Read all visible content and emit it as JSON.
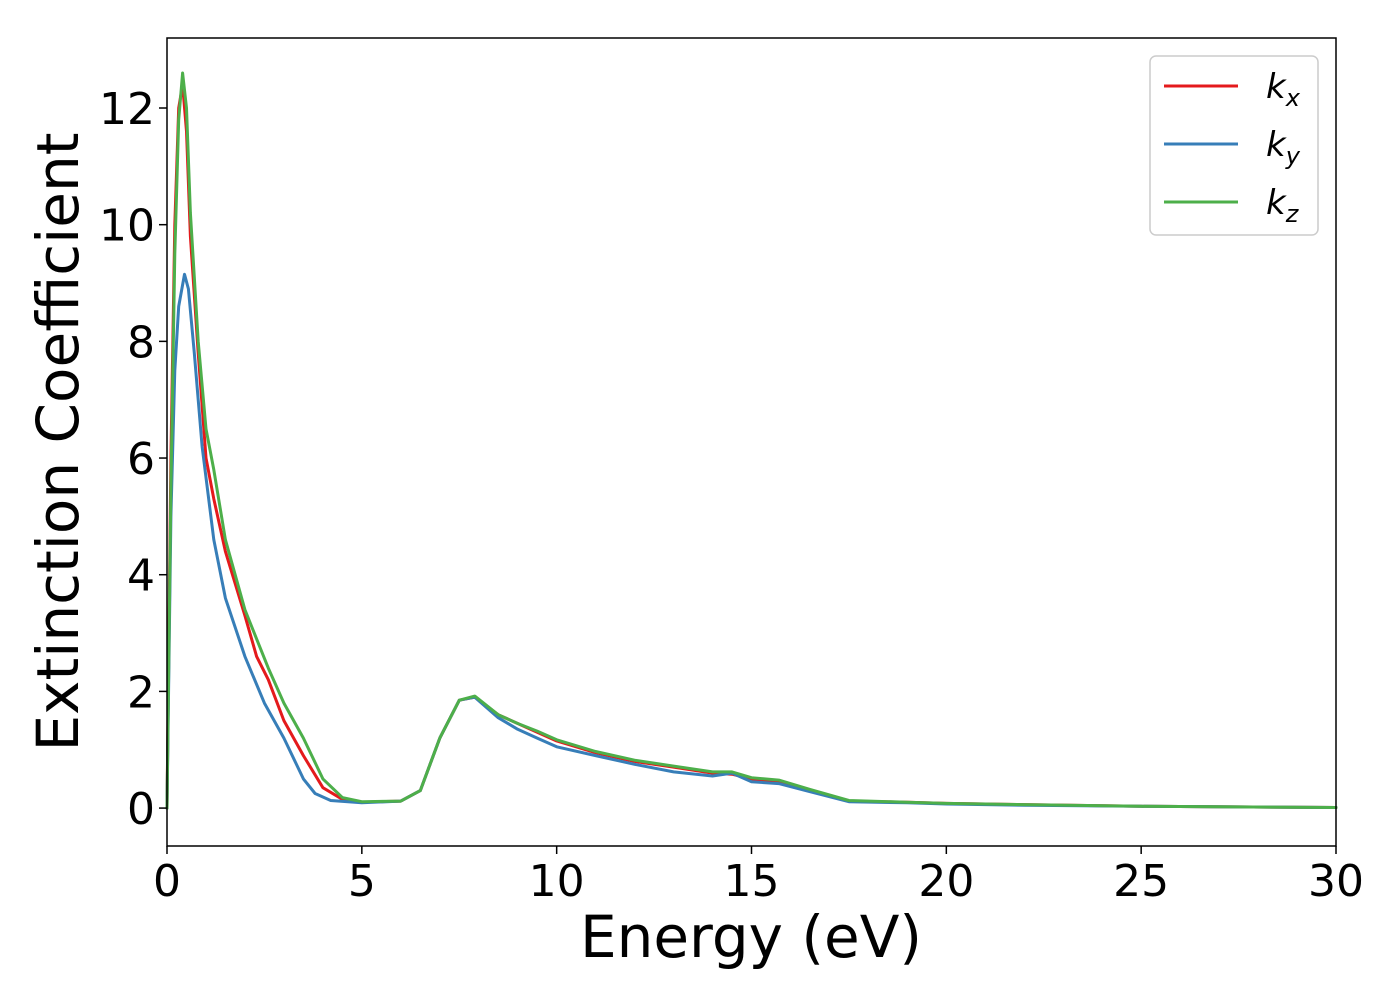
{
  "chart_data": {
    "type": "line",
    "xlabel": "Energy (eV)",
    "ylabel": "Extinction Coefficient",
    "xlim": [
      0,
      30
    ],
    "ylim": [
      -0.65,
      13.2
    ],
    "xticks": [
      0,
      5,
      10,
      15,
      20,
      25,
      30
    ],
    "yticks": [
      0,
      2,
      4,
      6,
      8,
      10,
      12
    ],
    "grid": false,
    "legend_position": "top-right",
    "series": [
      {
        "name": "k",
        "subscript": "x",
        "color": "#e41a1c",
        "points": [
          [
            0,
            0
          ],
          [
            0.1,
            6
          ],
          [
            0.2,
            10
          ],
          [
            0.3,
            12.0
          ],
          [
            0.4,
            12.4
          ],
          [
            0.5,
            11.6
          ],
          [
            0.6,
            9.8
          ],
          [
            0.8,
            7.8
          ],
          [
            1.0,
            6.0
          ],
          [
            1.2,
            5.3
          ],
          [
            1.5,
            4.4
          ],
          [
            2.0,
            3.3
          ],
          [
            2.3,
            2.6
          ],
          [
            2.6,
            2.2
          ],
          [
            3.0,
            1.5
          ],
          [
            3.5,
            0.9
          ],
          [
            4.0,
            0.35
          ],
          [
            4.5,
            0.15
          ],
          [
            5.0,
            0.1
          ],
          [
            6.0,
            0.12
          ],
          [
            6.5,
            0.3
          ],
          [
            7.0,
            1.2
          ],
          [
            7.5,
            1.85
          ],
          [
            7.9,
            1.9
          ],
          [
            8.5,
            1.6
          ],
          [
            9.0,
            1.45
          ],
          [
            9.5,
            1.3
          ],
          [
            10.0,
            1.15
          ],
          [
            11.0,
            0.95
          ],
          [
            12.0,
            0.8
          ],
          [
            13.0,
            0.7
          ],
          [
            14.0,
            0.6
          ],
          [
            14.5,
            0.58
          ],
          [
            15.0,
            0.5
          ],
          [
            15.7,
            0.45
          ],
          [
            16.5,
            0.3
          ],
          [
            17.5,
            0.12
          ],
          [
            19.0,
            0.1
          ],
          [
            20.0,
            0.08
          ],
          [
            22.0,
            0.06
          ],
          [
            25.0,
            0.03
          ],
          [
            30.0,
            0.01
          ]
        ]
      },
      {
        "name": "k",
        "subscript": "y",
        "color": "#377eb8",
        "points": [
          [
            0,
            0
          ],
          [
            0.1,
            5
          ],
          [
            0.2,
            7.5
          ],
          [
            0.3,
            8.6
          ],
          [
            0.45,
            9.15
          ],
          [
            0.55,
            8.9
          ],
          [
            0.7,
            7.8
          ],
          [
            0.9,
            6.2
          ],
          [
            1.2,
            4.6
          ],
          [
            1.5,
            3.6
          ],
          [
            2.0,
            2.6
          ],
          [
            2.5,
            1.8
          ],
          [
            3.0,
            1.2
          ],
          [
            3.5,
            0.5
          ],
          [
            3.8,
            0.25
          ],
          [
            4.2,
            0.13
          ],
          [
            5.0,
            0.09
          ],
          [
            6.0,
            0.12
          ],
          [
            6.5,
            0.3
          ],
          [
            7.0,
            1.2
          ],
          [
            7.5,
            1.85
          ],
          [
            7.9,
            1.9
          ],
          [
            8.5,
            1.55
          ],
          [
            9.0,
            1.35
          ],
          [
            9.5,
            1.2
          ],
          [
            10.0,
            1.05
          ],
          [
            11.0,
            0.9
          ],
          [
            12.0,
            0.75
          ],
          [
            13.0,
            0.62
          ],
          [
            14.0,
            0.55
          ],
          [
            14.5,
            0.6
          ],
          [
            15.0,
            0.45
          ],
          [
            15.7,
            0.42
          ],
          [
            16.5,
            0.28
          ],
          [
            17.5,
            0.11
          ],
          [
            19.0,
            0.09
          ],
          [
            20.0,
            0.07
          ],
          [
            22.0,
            0.05
          ],
          [
            25.0,
            0.03
          ],
          [
            30.0,
            0.01
          ]
        ]
      },
      {
        "name": "k",
        "subscript": "z",
        "color": "#4daf4a",
        "points": [
          [
            0,
            0
          ],
          [
            0.1,
            5.5
          ],
          [
            0.2,
            9.5
          ],
          [
            0.3,
            11.8
          ],
          [
            0.4,
            12.6
          ],
          [
            0.5,
            12.0
          ],
          [
            0.6,
            10.2
          ],
          [
            0.8,
            8.0
          ],
          [
            1.0,
            6.5
          ],
          [
            1.2,
            5.8
          ],
          [
            1.5,
            4.6
          ],
          [
            2.0,
            3.4
          ],
          [
            2.3,
            2.9
          ],
          [
            2.6,
            2.4
          ],
          [
            3.0,
            1.8
          ],
          [
            3.5,
            1.2
          ],
          [
            4.0,
            0.5
          ],
          [
            4.5,
            0.18
          ],
          [
            5.0,
            0.11
          ],
          [
            6.0,
            0.12
          ],
          [
            6.5,
            0.3
          ],
          [
            7.0,
            1.2
          ],
          [
            7.5,
            1.85
          ],
          [
            7.9,
            1.92
          ],
          [
            8.5,
            1.6
          ],
          [
            9.0,
            1.45
          ],
          [
            9.5,
            1.32
          ],
          [
            10.0,
            1.17
          ],
          [
            11.0,
            0.97
          ],
          [
            12.0,
            0.82
          ],
          [
            13.0,
            0.72
          ],
          [
            14.0,
            0.62
          ],
          [
            14.5,
            0.62
          ],
          [
            15.0,
            0.52
          ],
          [
            15.7,
            0.48
          ],
          [
            16.5,
            0.32
          ],
          [
            17.5,
            0.13
          ],
          [
            19.0,
            0.1
          ],
          [
            20.0,
            0.08
          ],
          [
            22.0,
            0.06
          ],
          [
            25.0,
            0.03
          ],
          [
            30.0,
            0.01
          ]
        ]
      }
    ]
  }
}
